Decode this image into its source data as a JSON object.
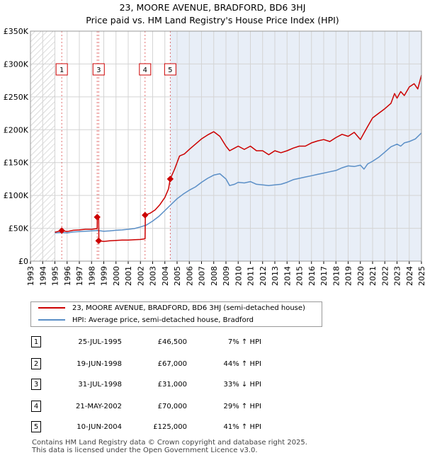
{
  "title": {
    "line1": "23, MOORE AVENUE, BRADFORD, BD6 3HJ",
    "line2": "Price paid vs. HM Land Registry's House Price Index (HPI)"
  },
  "colors": {
    "property": "#cc0000",
    "hpi": "#5b8fc7",
    "hatch": "#bbbbbb",
    "shade": "#e8eef7",
    "vline": "#cc0000"
  },
  "chart_data": {
    "type": "line",
    "title": "23, MOORE AVENUE, BRADFORD, BD6 3HJ — Price paid vs. HM Land Registry's House Price Index (HPI)",
    "xlabel": "",
    "ylabel": "",
    "xlim": [
      1993,
      2025
    ],
    "ylim": [
      0,
      350000
    ],
    "x_ticks": [
      1993,
      1994,
      1995,
      1996,
      1997,
      1998,
      1999,
      2000,
      2001,
      2002,
      2003,
      2004,
      2005,
      2006,
      2007,
      2008,
      2009,
      2010,
      2011,
      2012,
      2013,
      2014,
      2015,
      2016,
      2017,
      2018,
      2019,
      2020,
      2021,
      2022,
      2023,
      2024,
      2025
    ],
    "y_ticks": [
      {
        "value": 0,
        "label": "£0"
      },
      {
        "value": 50000,
        "label": "£50K"
      },
      {
        "value": 100000,
        "label": "£100K"
      },
      {
        "value": 150000,
        "label": "£150K"
      },
      {
        "value": 200000,
        "label": "£200K"
      },
      {
        "value": 250000,
        "label": "£250K"
      },
      {
        "value": 300000,
        "label": "£300K"
      },
      {
        "value": 350000,
        "label": "£350K"
      }
    ],
    "grid": true,
    "hatched_region": [
      1993,
      1995.0
    ],
    "shaded_region": [
      2004.44,
      2025
    ],
    "series": [
      {
        "name": "23, MOORE AVENUE, BRADFORD, BD6 3HJ (semi-detached house)",
        "color": "#cc0000",
        "x": [
          1995.0,
          1995.56,
          1996.0,
          1996.5,
          1997.0,
          1997.5,
          1998.0,
          1998.46,
          1998.47,
          1998.58,
          1998.6,
          1999.0,
          1999.5,
          2000.0,
          2000.5,
          2001.0,
          2001.5,
          2002.0,
          2002.38,
          2002.4,
          2002.8,
          2003.2,
          2003.6,
          2004.0,
          2004.3,
          2004.44,
          2004.8,
          2005.2,
          2005.6,
          2006.0,
          2006.5,
          2007.0,
          2007.5,
          2008.0,
          2008.5,
          2009.0,
          2009.3,
          2009.7,
          2010.0,
          2010.5,
          2011.0,
          2011.5,
          2012.0,
          2012.5,
          2013.0,
          2013.5,
          2014.0,
          2014.5,
          2015.0,
          2015.5,
          2016.0,
          2016.5,
          2017.0,
          2017.5,
          2018.0,
          2018.5,
          2019.0,
          2019.5,
          2020.0,
          2020.3,
          2020.6,
          2021.0,
          2021.5,
          2022.0,
          2022.5,
          2022.8,
          2023.0,
          2023.3,
          2023.6,
          2024.0,
          2024.4,
          2024.7,
          2025.0
        ],
        "values": [
          44000,
          46500,
          45000,
          47000,
          47500,
          48500,
          48500,
          49500,
          67000,
          67000,
          31000,
          30000,
          31000,
          31500,
          32000,
          32000,
          32500,
          33000,
          34000,
          70000,
          73000,
          78000,
          86000,
          97000,
          110000,
          125000,
          140000,
          160000,
          163000,
          170000,
          178000,
          186000,
          192000,
          197000,
          190000,
          175000,
          168000,
          172000,
          175000,
          170000,
          175000,
          168000,
          168000,
          162000,
          168000,
          165000,
          168000,
          172000,
          175000,
          175000,
          180000,
          183000,
          185000,
          182000,
          188000,
          193000,
          190000,
          196000,
          185000,
          195000,
          205000,
          218000,
          225000,
          232000,
          240000,
          255000,
          248000,
          258000,
          252000,
          265000,
          270000,
          262000,
          283000
        ]
      },
      {
        "name": "HPI: Average price, semi-detached house, Bradford",
        "color": "#5b8fc7",
        "x": [
          1995.0,
          1995.5,
          1996.0,
          1996.5,
          1997.0,
          1997.5,
          1998.0,
          1998.5,
          1999.0,
          1999.5,
          2000.0,
          2000.5,
          2001.0,
          2001.5,
          2002.0,
          2002.5,
          2003.0,
          2003.5,
          2004.0,
          2004.5,
          2005.0,
          2005.5,
          2006.0,
          2006.5,
          2007.0,
          2007.5,
          2008.0,
          2008.5,
          2009.0,
          2009.3,
          2009.7,
          2010.0,
          2010.5,
          2011.0,
          2011.5,
          2012.0,
          2012.5,
          2013.0,
          2013.5,
          2014.0,
          2014.5,
          2015.0,
          2015.5,
          2016.0,
          2016.5,
          2017.0,
          2017.5,
          2018.0,
          2018.5,
          2019.0,
          2019.5,
          2020.0,
          2020.3,
          2020.6,
          2021.0,
          2021.5,
          2022.0,
          2022.5,
          2023.0,
          2023.3,
          2023.6,
          2024.0,
          2024.5,
          2025.0
        ],
        "values": [
          43000,
          43500,
          43000,
          44500,
          45000,
          45500,
          46000,
          46500,
          45500,
          46000,
          47000,
          47500,
          48500,
          49500,
          52000,
          55000,
          61000,
          68000,
          77000,
          86000,
          95000,
          102000,
          108000,
          113000,
          120000,
          126000,
          131000,
          133000,
          125000,
          115000,
          117000,
          120000,
          119000,
          121000,
          117000,
          116000,
          115000,
          116000,
          117000,
          120000,
          124000,
          126000,
          128000,
          130000,
          132000,
          134000,
          136000,
          138000,
          142000,
          145000,
          144000,
          146000,
          140000,
          148000,
          152000,
          158000,
          166000,
          174000,
          178000,
          175000,
          180000,
          182000,
          186000,
          195000
        ]
      }
    ],
    "transactions": [
      {
        "n": "1",
        "x": 1995.56,
        "value": 46500
      },
      {
        "n": "2",
        "x": 1998.46,
        "value": 67000
      },
      {
        "n": "3",
        "x": 1998.58,
        "value": 31000
      },
      {
        "n": "4",
        "x": 2002.38,
        "value": 70000
      },
      {
        "n": "5",
        "x": 2004.44,
        "value": 125000
      }
    ],
    "marker_boxes": [
      {
        "n": "1",
        "x": 1995.56
      },
      {
        "n": "3",
        "x": 1998.58
      },
      {
        "n": "4",
        "x": 2002.38
      },
      {
        "n": "5",
        "x": 2004.44
      }
    ]
  },
  "legend": {
    "property_label": "23, MOORE AVENUE, BRADFORD, BD6 3HJ (semi-detached house)",
    "hpi_label": "HPI: Average price, semi-detached house, Bradford"
  },
  "table": [
    {
      "n": "1",
      "date": "25-JUL-1995",
      "price": "£46,500",
      "rel": "7% ↑ HPI"
    },
    {
      "n": "2",
      "date": "19-JUN-1998",
      "price": "£67,000",
      "rel": "44% ↑ HPI"
    },
    {
      "n": "3",
      "date": "31-JUL-1998",
      "price": "£31,000",
      "rel": "33% ↓ HPI"
    },
    {
      "n": "4",
      "date": "21-MAY-2002",
      "price": "£70,000",
      "rel": "29% ↑ HPI"
    },
    {
      "n": "5",
      "date": "10-JUN-2004",
      "price": "£125,000",
      "rel": "41% ↑ HPI"
    }
  ],
  "footer": {
    "line1": "Contains HM Land Registry data © Crown copyright and database right 2025.",
    "line2": "This data is licensed under the Open Government Licence v3.0."
  }
}
